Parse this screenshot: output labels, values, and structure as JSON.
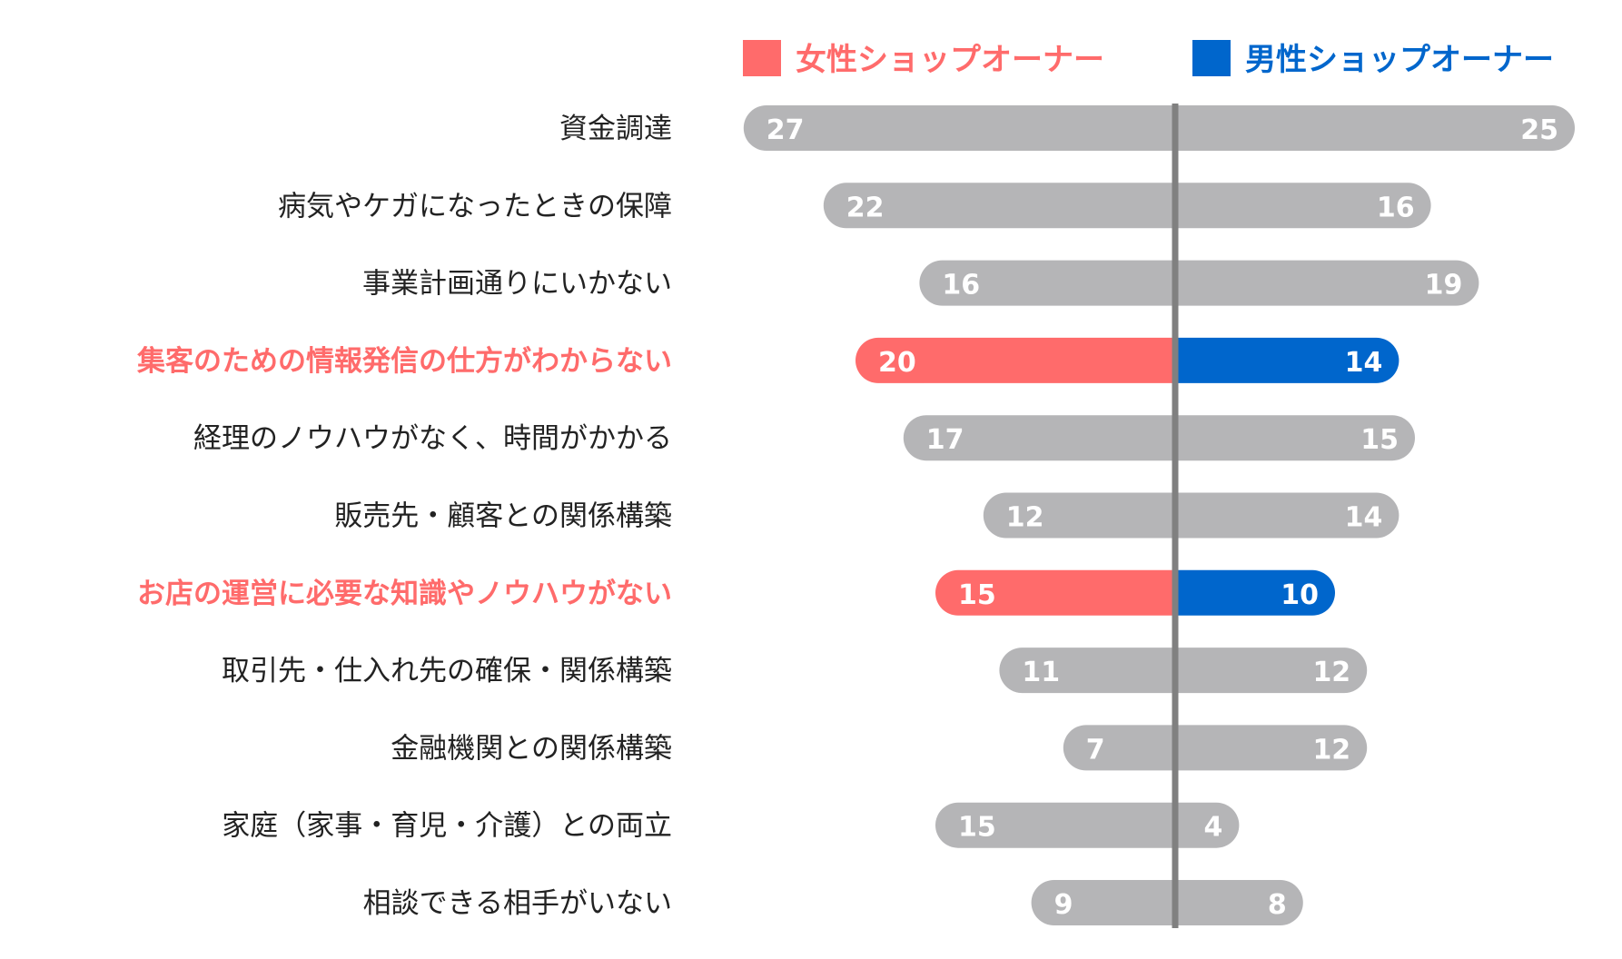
{
  "chart_data": {
    "type": "bar",
    "orientation": "horizontal-diverging",
    "categories": [
      "資金調達",
      "病気やケガになったときの保障",
      "事業計画通りにいかない",
      "集客のための情報発信の仕方がわからない",
      "経理のノウハウがなく、時間がかかる",
      "販売先・顧客との関係構築",
      "お店の運営に必要な知識やノウハウがない",
      "取引先・仕入れ先の確保・関係構築",
      "金融機関との関係構築",
      "家庭（家事・育児・介護）との両立",
      "相談できる相手がいない"
    ],
    "series": [
      {
        "name": "女性ショップオーナー",
        "side": "left",
        "color": "#ff6b6b",
        "values": [
          27,
          22,
          16,
          20,
          17,
          12,
          15,
          11,
          7,
          15,
          9
        ]
      },
      {
        "name": "男性ショップオーナー",
        "side": "right",
        "color": "#0066cc",
        "values": [
          25,
          16,
          19,
          14,
          15,
          14,
          10,
          12,
          12,
          4,
          8
        ]
      }
    ],
    "highlighted_categories": [
      3,
      6
    ],
    "default_bar_color": "#b5b5b7",
    "center_line_color": "#808080",
    "legend_position": "top",
    "grid": false
  }
}
